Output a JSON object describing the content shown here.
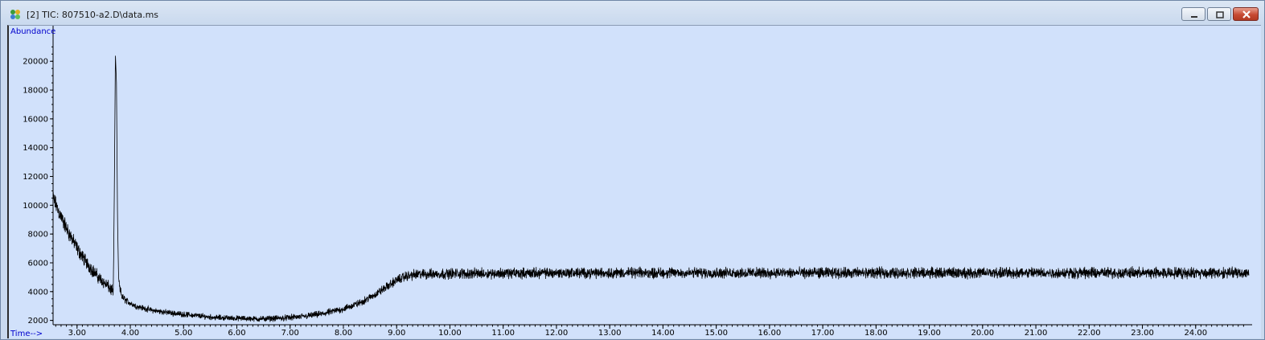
{
  "window": {
    "title": "[2] TIC: 807510-a2.D\\data.ms",
    "icon": "chromatogram-app-icon",
    "controls": [
      "minimize-icon",
      "restore-icon",
      "close-icon"
    ]
  },
  "chart_data": {
    "type": "line",
    "ylabel": "Abundance",
    "xlabel": "Time-->",
    "xlim": [
      2.55,
      25.0
    ],
    "ylim": [
      1700,
      21800
    ],
    "x_ticks": [
      "3.00",
      "4.00",
      "5.00",
      "6.00",
      "7.00",
      "8.00",
      "9.00",
      "10.00",
      "11.00",
      "12.00",
      "13.00",
      "14.00",
      "15.00",
      "16.00",
      "17.00",
      "18.00",
      "19.00",
      "20.00",
      "21.00",
      "22.00",
      "23.00",
      "24.00"
    ],
    "y_ticks": [
      "2000",
      "4000",
      "6000",
      "8000",
      "10000",
      "12000",
      "14000",
      "16000",
      "18000",
      "20000"
    ],
    "grid": false,
    "background": "#d1e1fb",
    "line_color": "#000000",
    "label_color": "#0000cc",
    "series": [
      {
        "name": "",
        "profile": {
          "x": [
            2.55,
            2.65,
            2.8,
            3.0,
            3.2,
            3.4,
            3.6,
            3.68,
            3.7,
            3.72,
            3.74,
            3.76,
            3.78,
            3.8,
            3.85,
            3.95,
            4.1,
            4.4,
            4.8,
            5.2,
            5.6,
            6.0,
            6.4,
            6.8,
            7.2,
            7.6,
            8.0,
            8.3,
            8.6,
            8.8,
            9.0,
            9.2,
            9.4,
            10.0,
            12.0,
            14.0,
            16.0,
            18.0,
            20.0,
            22.0,
            24.0,
            25.0
          ],
          "y": [
            10500,
            9600,
            8400,
            7000,
            5900,
            5000,
            4300,
            3900,
            11000,
            20500,
            18500,
            9000,
            5000,
            4200,
            3600,
            3300,
            3000,
            2700,
            2500,
            2350,
            2200,
            2150,
            2100,
            2150,
            2250,
            2450,
            2800,
            3200,
            3800,
            4300,
            4800,
            5100,
            5200,
            5250,
            5300,
            5300,
            5300,
            5300,
            5300,
            5300,
            5300,
            5300
          ]
        },
        "noise_amplitude": [
          [
            2.55,
            700
          ],
          [
            3.7,
            500
          ],
          [
            4.0,
            250
          ],
          [
            6.0,
            230
          ],
          [
            8.5,
            320
          ],
          [
            9.3,
            450
          ],
          [
            25.0,
            480
          ]
        ]
      }
    ]
  }
}
